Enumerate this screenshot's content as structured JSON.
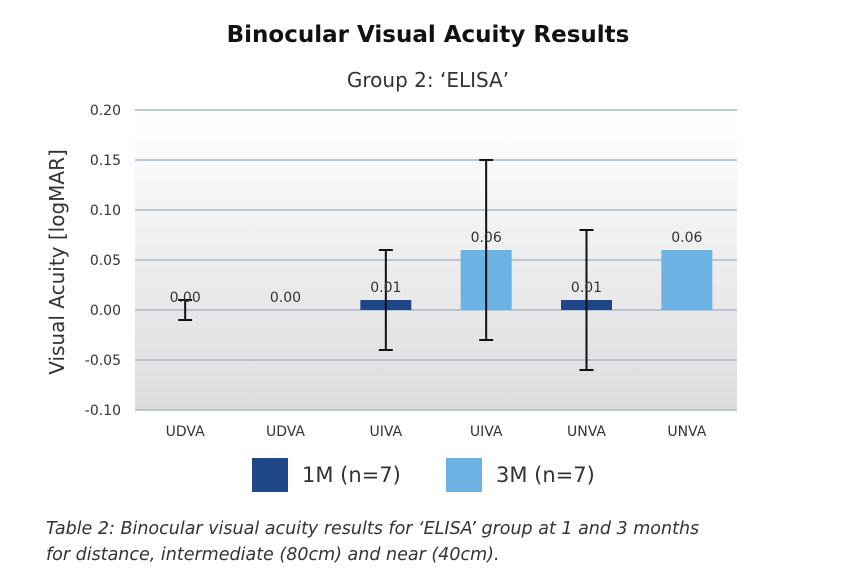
{
  "chart_data": {
    "type": "bar",
    "title": "Binocular Visual Acuity Results",
    "subtitle": "Group 2: ‘ELISA’",
    "ylabel": "Visual Acuity [logMAR]",
    "xlabel": "",
    "ylim": [
      -0.1,
      0.2
    ],
    "yticks": [
      "0.20",
      "0.15",
      "0.10",
      "0.05",
      "0.00",
      "-0.05",
      "-0.10"
    ],
    "ytick_values": [
      0.2,
      0.15,
      0.1,
      0.05,
      0.0,
      -0.05,
      -0.1
    ],
    "grid": true,
    "legend_position": "bottom",
    "categories": [
      "UDVA",
      "UDVA",
      "UIVA",
      "UIVA",
      "UNVA",
      "UNVA"
    ],
    "bars": [
      {
        "category": "UDVA",
        "series": "1M (n=7)",
        "value": 0.0,
        "label": "0.00",
        "err_high": 0.01,
        "err_low": -0.01
      },
      {
        "category": "UDVA",
        "series": "3M (n=7)",
        "value": 0.0,
        "label": "0.00",
        "err_high": null,
        "err_low": null
      },
      {
        "category": "UIVA",
        "series": "1M (n=7)",
        "value": 0.01,
        "label": "0.01",
        "err_high": 0.06,
        "err_low": -0.04
      },
      {
        "category": "UIVA",
        "series": "3M (n=7)",
        "value": 0.06,
        "label": "0.06",
        "err_high": 0.15,
        "err_low": -0.03
      },
      {
        "category": "UNVA",
        "series": "1M (n=7)",
        "value": 0.01,
        "label": "0.01",
        "err_high": 0.08,
        "err_low": -0.06
      },
      {
        "category": "UNVA",
        "series": "3M (n=7)",
        "value": 0.06,
        "label": "0.06",
        "err_high": null,
        "err_low": null
      }
    ],
    "series": [
      {
        "name": "1M (n=7)",
        "color": "#1f4688"
      },
      {
        "name": "3M (n=7)",
        "color": "#6cb2e2"
      }
    ]
  },
  "caption": {
    "line1": "Table 2: Binocular visual acuity results for ‘ELISA’ group at 1 and 3 months",
    "line2": "for distance, intermediate (80cm) and near (40cm)."
  }
}
